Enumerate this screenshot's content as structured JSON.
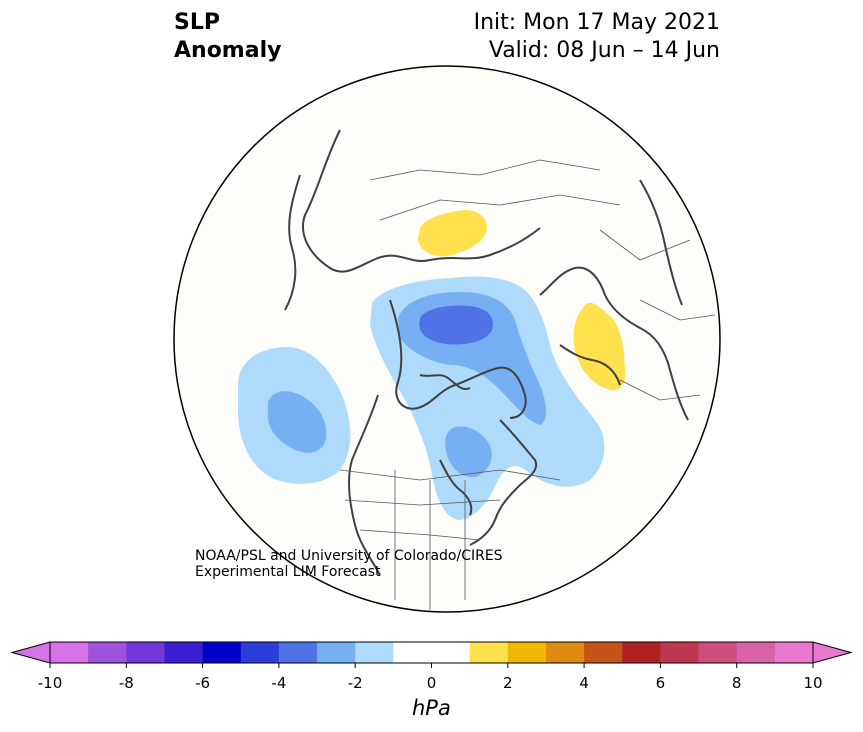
{
  "title": {
    "left_line1": "SLP",
    "left_line2": "Anomaly",
    "init": "Init: Mon 17 May 2021",
    "valid": "Valid: 08 Jun – 14 Jun"
  },
  "credit": {
    "line1": "NOAA/PSL and University of Colorado/CIRES",
    "line2": "Experimental LIM Forecast"
  },
  "colorbar": {
    "unit": "hPa",
    "ticks": [
      "-10",
      "-8",
      "-6",
      "-4",
      "-2",
      "0",
      "2",
      "4",
      "6",
      "8",
      "10"
    ],
    "colors": [
      "#d572e8",
      "#9f52dc",
      "#7438d8",
      "#3c1fd0",
      "#0000c8",
      "#2a3fd8",
      "#4f72e6",
      "#77b0f2",
      "#aedbfb",
      "#ffffff",
      "#ffffff",
      "#ffe14d",
      "#f2b700",
      "#e08b10",
      "#c55418",
      "#b02222",
      "#c03850",
      "#cc4f7e",
      "#d862a6",
      "#e878d0"
    ]
  },
  "anomalies": [
    {
      "region": "north-pacific",
      "sign": "negative",
      "min_level_hpa": -3
    },
    {
      "region": "arctic-ocean",
      "sign": "negative",
      "min_level_hpa": -4
    },
    {
      "region": "hudson-labrador",
      "sign": "negative",
      "min_level_hpa": -2
    },
    {
      "region": "east-siberia",
      "sign": "positive",
      "max_level_hpa": 1
    },
    {
      "region": "scandinavia",
      "sign": "positive",
      "max_level_hpa": 1
    }
  ]
}
